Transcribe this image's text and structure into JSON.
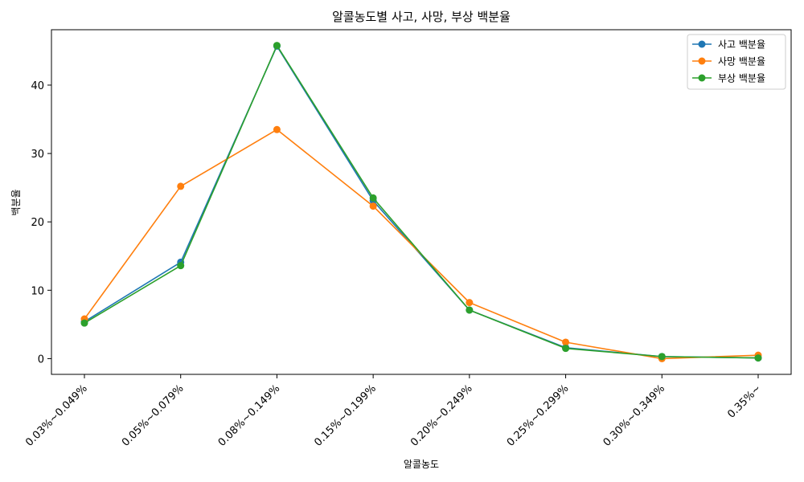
{
  "chart_data": {
    "type": "line",
    "title": "알콜농도별 사고, 사망, 부상 백분율",
    "xlabel": "알콜농도",
    "ylabel": "백분율",
    "categories": [
      "0.03%~0.049%",
      "0.05%~0.079%",
      "0.08%~0.149%",
      "0.15%~0.199%",
      "0.20%~0.249%",
      "0.25%~0.299%",
      "0.30%~0.349%",
      "0.35%~"
    ],
    "ylim": [
      -2.3,
      48.1
    ],
    "yticks": [
      "0",
      "10",
      "20",
      "30",
      "40"
    ],
    "grid": false,
    "legend_position": "top-right",
    "series": [
      {
        "name": "사고 백분율",
        "color": "#1f77b4",
        "values": [
          5.4,
          14.1,
          45.7,
          23.1,
          7.1,
          1.6,
          0.3,
          0.1
        ]
      },
      {
        "name": "사망 백분율",
        "color": "#ff7f0e",
        "values": [
          5.8,
          25.2,
          33.5,
          22.3,
          8.2,
          2.4,
          0.0,
          0.5
        ]
      },
      {
        "name": "부상 백분율",
        "color": "#2ca02c",
        "values": [
          5.2,
          13.6,
          45.8,
          23.5,
          7.1,
          1.5,
          0.3,
          0.1
        ]
      }
    ]
  }
}
